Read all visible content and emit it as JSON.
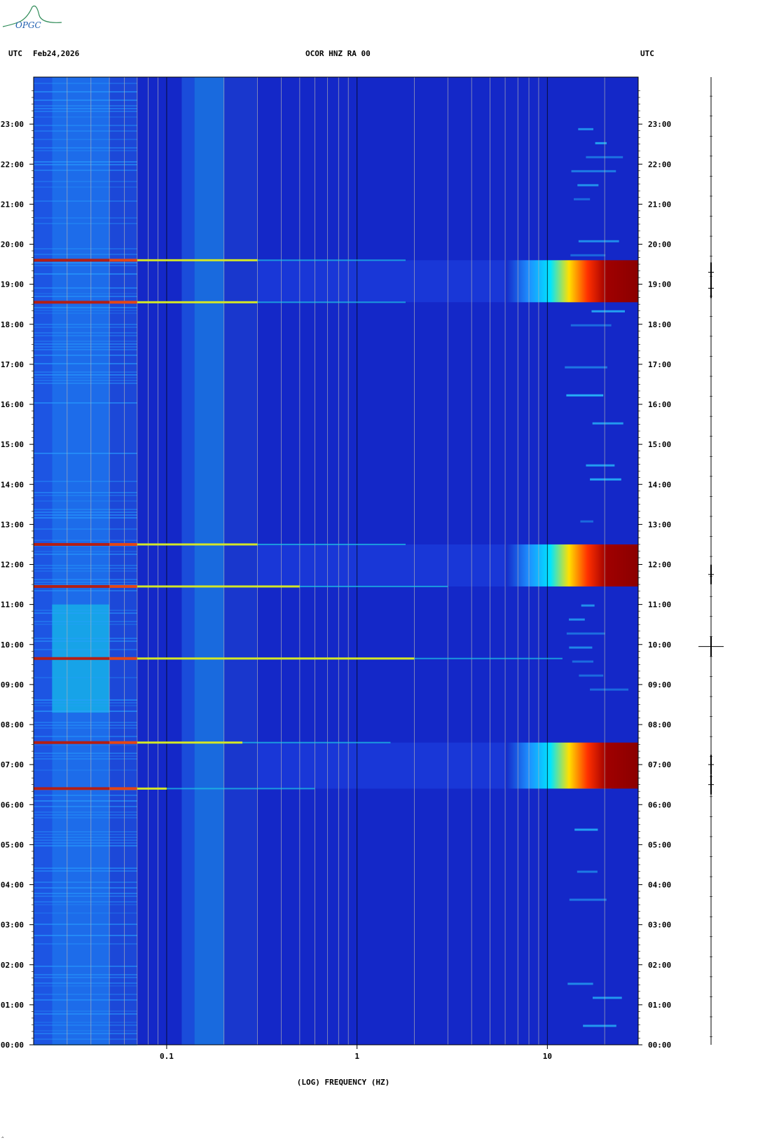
{
  "header": {
    "left_utc": "UTC",
    "date": "Feb24,2026",
    "station": "OCOR HNZ RA 00",
    "right_utc": "UTC"
  },
  "logo": {
    "text": "OPGC"
  },
  "footer_mark": "^",
  "chart_data": {
    "type": "heatmap",
    "title": "OCOR HNZ RA 00",
    "xlabel": "(LOG) FREQUENCY (HZ)",
    "xscale": "log",
    "xlim": [
      0.02,
      30
    ],
    "x_ticks": [
      {
        "value": 0.1,
        "label": "0.1"
      },
      {
        "value": 1,
        "label": "1"
      },
      {
        "value": 10,
        "label": "10"
      }
    ],
    "ylabel": "UTC",
    "ylim_hours": [
      0,
      24
    ],
    "y_ticks": [
      {
        "hour": 0,
        "label": "00:00"
      },
      {
        "hour": 1,
        "label": "01:00"
      },
      {
        "hour": 2,
        "label": "02:00"
      },
      {
        "hour": 3,
        "label": "03:00"
      },
      {
        "hour": 4,
        "label": "04:00"
      },
      {
        "hour": 5,
        "label": "05:00"
      },
      {
        "hour": 6,
        "label": "06:00"
      },
      {
        "hour": 7,
        "label": "07:00"
      },
      {
        "hour": 8,
        "label": "08:00"
      },
      {
        "hour": 9,
        "label": "09:00"
      },
      {
        "hour": 10,
        "label": "10:00"
      },
      {
        "hour": 11,
        "label": "11:00"
      },
      {
        "hour": 12,
        "label": "12:00"
      },
      {
        "hour": 13,
        "label": "13:00"
      },
      {
        "hour": 14,
        "label": "14:00"
      },
      {
        "hour": 15,
        "label": "15:00"
      },
      {
        "hour": 16,
        "label": "16:00"
      },
      {
        "hour": 17,
        "label": "17:00"
      },
      {
        "hour": 18,
        "label": "18:00"
      },
      {
        "hour": 19,
        "label": "19:00"
      },
      {
        "hour": 20,
        "label": "20:00"
      },
      {
        "hour": 21,
        "label": "21:00"
      },
      {
        "hour": 22,
        "label": "22:00"
      },
      {
        "hour": 23,
        "label": "23:00"
      }
    ],
    "background_color": "#1428c8",
    "high_energy_blocks": [
      {
        "start_hour": 6.4,
        "end_hour": 7.55,
        "min_freq": 6
      },
      {
        "start_hour": 11.45,
        "end_hour": 12.5,
        "min_freq": 6
      },
      {
        "start_hour": 18.55,
        "end_hour": 19.6,
        "min_freq": 6
      }
    ],
    "broadband_lines": [
      {
        "hour": 6.4,
        "max_freq": 0.1
      },
      {
        "hour": 7.55,
        "max_freq": 0.25
      },
      {
        "hour": 9.65,
        "max_freq": 2
      },
      {
        "hour": 11.45,
        "max_freq": 0.5
      },
      {
        "hour": 12.5,
        "max_freq": 0.3
      },
      {
        "hour": 18.55,
        "max_freq": 0.3
      },
      {
        "hour": 19.6,
        "max_freq": 0.3
      }
    ],
    "seismogram_events_hours": [
      6.5,
      7.0,
      11.75,
      18.9,
      19.3,
      9.95
    ]
  }
}
